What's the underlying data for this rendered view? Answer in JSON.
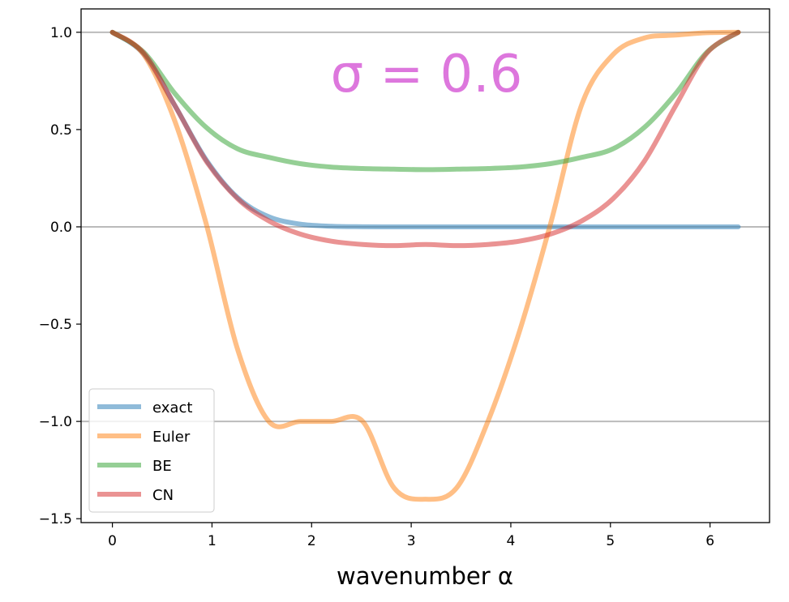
{
  "chart_data": {
    "type": "line",
    "title": "",
    "annotation": "σ = 0.6",
    "annotation_color": "#dd77dd",
    "xlabel": "wavenumber α",
    "ylabel": "",
    "xlim": [
      -0.3142,
      6.5973
    ],
    "ylim": [
      -1.52,
      1.12
    ],
    "xticks": [
      0,
      1,
      2,
      3,
      4,
      5,
      6
    ],
    "xtick_labels": [
      "0",
      "1",
      "2",
      "3",
      "4",
      "5",
      "6"
    ],
    "yticks": [
      -1.5,
      -1.0,
      -0.5,
      0.0,
      0.5,
      1.0
    ],
    "ytick_labels": [
      "−1.5",
      "−1.0",
      "−0.5",
      "0.0",
      "0.5",
      "1.0"
    ],
    "reference_lines": [
      -1,
      0,
      1
    ],
    "grid": false,
    "legend_position": "lower-left",
    "x": [
      0,
      0.3142,
      0.6283,
      0.9425,
      1.2566,
      1.5708,
      1.885,
      2.1991,
      2.5133,
      2.8274,
      3.1416,
      3.4558,
      3.7699,
      4.0841,
      4.3982,
      4.7124,
      5.0265,
      5.3407,
      5.6549,
      5.969,
      6.2832
    ],
    "series": [
      {
        "name": "exact",
        "color": "#1f77b4",
        "values": [
          1.0,
          0.8886,
          0.6223,
          0.3439,
          0.1502,
          0.0518,
          0.0141,
          0.003,
          0.0005,
          0.0001,
          0.0,
          0.0,
          0.0,
          0.0,
          0.0,
          0.0,
          0.0,
          0.0,
          0.0,
          0.0,
          0.0
        ]
      },
      {
        "name": "Euler",
        "color": "#ff7f0e",
        "values": [
          1.0,
          0.8854,
          0.5416,
          0.0146,
          -0.6292,
          -1.0,
          -1.0,
          -1.0,
          -1.0,
          -1.3416,
          -1.4,
          -1.3416,
          -1.0,
          -0.5416,
          0.0146,
          0.6292,
          0.8854,
          0.9708,
          0.9854,
          0.9977,
          1.0
        ]
      },
      {
        "name": "BE",
        "color": "#2ca02c",
        "values": [
          1.0,
          0.8975,
          0.6845,
          0.5108,
          0.4011,
          0.3571,
          0.3247,
          0.3072,
          0.2998,
          0.2964,
          0.2941,
          0.2964,
          0.2998,
          0.3072,
          0.3247,
          0.3571,
          0.4011,
          0.5108,
          0.6845,
          0.8975,
          1.0
        ]
      },
      {
        "name": "CN",
        "color": "#d62728",
        "values": [
          1.0,
          0.8932,
          0.6225,
          0.3376,
          0.1449,
          0.0306,
          -0.0371,
          -0.0737,
          -0.0906,
          -0.0966,
          -0.0909,
          -0.0966,
          -0.0906,
          -0.0737,
          -0.0371,
          0.0306,
          0.1449,
          0.3376,
          0.6225,
          0.8932,
          1.0
        ]
      }
    ]
  }
}
